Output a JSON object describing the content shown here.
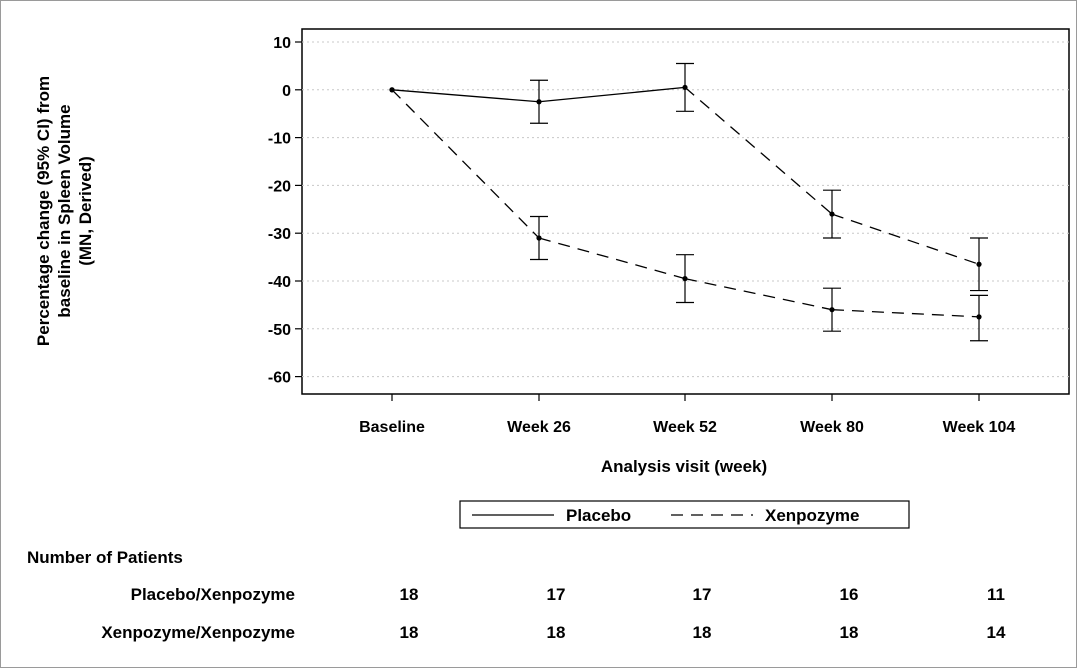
{
  "chart_data": {
    "type": "line",
    "xlabel": "Analysis visit (week)",
    "ylabel_lines": [
      "Percentage change (95% CI) from",
      "baseline in Spleen Volume",
      "(MN, Derived)"
    ],
    "categories": [
      "Baseline",
      "Week 26",
      "Week 52",
      "Week 80",
      "Week 104"
    ],
    "ylim": [
      -64,
      12
    ],
    "yticks": [
      10,
      0,
      -10,
      -20,
      -30,
      -40,
      -50,
      -60
    ],
    "grid": "horizontal dotted",
    "legend_position": "bottom",
    "series": [
      {
        "name": "Placebo/Xenpozyme",
        "values": [
          0,
          -2.5,
          0.5,
          -26,
          -36.5
        ],
        "ci_lower": [
          0,
          -7,
          -4.5,
          -31,
          -42
        ],
        "ci_upper": [
          0,
          2,
          5.5,
          -21,
          -31
        ],
        "segment_styles": [
          "solid",
          "solid",
          "dashed",
          "dashed"
        ]
      },
      {
        "name": "Xenpozyme/Xenpozyme",
        "values": [
          0,
          -31,
          -39.5,
          -46,
          -47.5
        ],
        "ci_lower": [
          0,
          -35.5,
          -44.5,
          -50.5,
          -52.5
        ],
        "ci_upper": [
          0,
          -26.5,
          -34.5,
          -41.5,
          -43
        ],
        "segment_styles": [
          "dashed",
          "dashed",
          "dashed",
          "dashed"
        ]
      }
    ],
    "legend": [
      {
        "label": "Placebo",
        "style": "solid"
      },
      {
        "label": "Xenpozyme",
        "style": "dashed"
      }
    ],
    "patients_table": {
      "title": "Number of Patients",
      "rows": [
        {
          "label": "Placebo/Xenpozyme",
          "counts": [
            "18",
            "17",
            "17",
            "16",
            "11"
          ]
        },
        {
          "label": "Xenpozyme/Xenpozyme",
          "counts": [
            "18",
            "18",
            "18",
            "18",
            "14"
          ]
        }
      ]
    }
  }
}
